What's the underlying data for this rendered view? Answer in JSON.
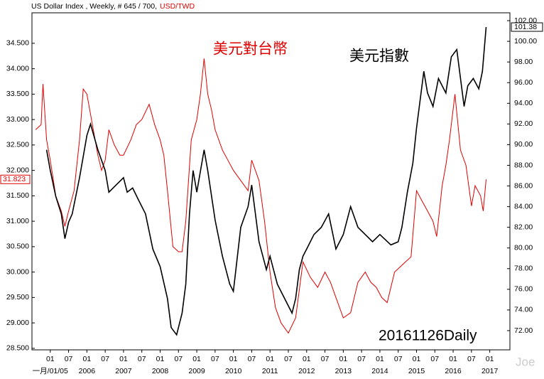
{
  "chart_data": {
    "type": "line",
    "title": "US Dollar Index , Weekly, # 645 / 700,",
    "title_pair": "USD/TWD",
    "annotations": [
      "美元對台幣",
      "美元指數",
      "20161126Daily",
      "Joe"
    ],
    "xlim": [
      2004.5,
      2017.55
    ],
    "xticks": [
      {
        "value": 2005,
        "label": "01"
      },
      {
        "value": 2005.5,
        "label": "07"
      },
      {
        "value": 2006,
        "label": "01"
      },
      {
        "value": 2006.5,
        "label": "07"
      },
      {
        "value": 2007,
        "label": "01"
      },
      {
        "value": 2007.5,
        "label": "07"
      },
      {
        "value": 2008,
        "label": "01"
      },
      {
        "value": 2008.5,
        "label": "07"
      },
      {
        "value": 2009,
        "label": "01"
      },
      {
        "value": 2009.5,
        "label": "07"
      },
      {
        "value": 2010,
        "label": "01"
      },
      {
        "value": 2010.5,
        "label": "07"
      },
      {
        "value": 2011,
        "label": "01"
      },
      {
        "value": 2011.5,
        "label": "07"
      },
      {
        "value": 2012,
        "label": "01"
      },
      {
        "value": 2012.5,
        "label": "07"
      },
      {
        "value": 2013,
        "label": "01"
      },
      {
        "value": 2013.5,
        "label": "07"
      },
      {
        "value": 2014,
        "label": "01"
      },
      {
        "value": 2014.5,
        "label": "07"
      },
      {
        "value": 2015,
        "label": "01"
      },
      {
        "value": 2015.5,
        "label": "07"
      },
      {
        "value": 2016,
        "label": "01"
      },
      {
        "value": 2016.5,
        "label": "07"
      },
      {
        "value": 2017,
        "label": "01"
      }
    ],
    "year_labels": [
      {
        "value": 2005,
        "label": "一月/01/05"
      },
      2006,
      2007,
      2008,
      2009,
      2010,
      2011,
      2012,
      2013,
      2014,
      2015,
      2016,
      2017
    ],
    "ylim": [
      28.47,
      35.1
    ],
    "yticks": [
      {
        "value": 28.5,
        "label": "28.500"
      },
      {
        "value": 29,
        "label": "29.000"
      },
      {
        "value": 29.5,
        "label": "29.500"
      },
      {
        "value": 30,
        "label": "30.000"
      },
      {
        "value": 30.5,
        "label": "30.500"
      },
      {
        "value": 31,
        "label": "31.000"
      },
      {
        "value": 31.5,
        "label": "31.500"
      },
      {
        "value": 32,
        "label": "32.000"
      },
      {
        "value": 32.5,
        "label": "32.500"
      },
      {
        "value": 33,
        "label": "33.000"
      },
      {
        "value": 33.5,
        "label": "33.500"
      },
      {
        "value": 34,
        "label": "34.000"
      },
      {
        "value": 34.5,
        "label": "34.500"
      }
    ],
    "y2lim": [
      70.14,
      102.76
    ],
    "y2ticks": [
      {
        "value": 72,
        "label": "72.00"
      },
      {
        "value": 74,
        "label": "74.00"
      },
      {
        "value": 76,
        "label": "76.00"
      },
      {
        "value": 78,
        "label": "78.00"
      },
      {
        "value": 80,
        "label": "80.00"
      },
      {
        "value": 82,
        "label": "82.00"
      },
      {
        "value": 84,
        "label": "84.00"
      },
      {
        "value": 86,
        "label": "86.00"
      },
      {
        "value": 88,
        "label": "88.00"
      },
      {
        "value": 90,
        "label": "90.00"
      },
      {
        "value": 92,
        "label": "92.00"
      },
      {
        "value": 94,
        "label": "94.00"
      },
      {
        "value": 96,
        "label": "96.00"
      },
      {
        "value": 98,
        "label": "98.00"
      },
      {
        "value": 100,
        "label": "100.00"
      },
      {
        "value": 102,
        "label": "102.00"
      }
    ],
    "series": [
      {
        "name": "USD/TWD",
        "color": "#e00000",
        "last_value": 31.823,
        "x": [
          2004.6,
          2004.75,
          2004.8,
          2004.9,
          2005.0,
          2005.15,
          2005.3,
          2005.4,
          2005.5,
          2005.65,
          2005.8,
          2005.9,
          2006.0,
          2006.15,
          2006.3,
          2006.4,
          2006.5,
          2006.6,
          2006.75,
          2006.9,
          2007.0,
          2007.2,
          2007.35,
          2007.5,
          2007.7,
          2007.85,
          2008.0,
          2008.1,
          2008.2,
          2008.35,
          2008.5,
          2008.6,
          2008.7,
          2008.85,
          2009.0,
          2009.1,
          2009.2,
          2009.3,
          2009.4,
          2009.5,
          2009.7,
          2009.85,
          2010.0,
          2010.2,
          2010.4,
          2010.5,
          2010.6,
          2010.7,
          2010.85,
          2011.0,
          2011.15,
          2011.3,
          2011.5,
          2011.7,
          2011.9,
          2012.1,
          2012.3,
          2012.5,
          2012.65,
          2012.8,
          2013.0,
          2013.2,
          2013.4,
          2013.6,
          2013.75,
          2013.9,
          2014.05,
          2014.2,
          2014.4,
          2014.55,
          2014.7,
          2014.85,
          2015.0,
          2015.15,
          2015.3,
          2015.45,
          2015.55,
          2015.7,
          2015.8,
          2015.9,
          2016.05,
          2016.2,
          2016.35,
          2016.5,
          2016.6,
          2016.75,
          2016.82,
          2016.9
        ],
        "values": [
          32.8,
          32.9,
          33.7,
          32.6,
          32.2,
          31.5,
          31.2,
          30.9,
          31.2,
          31.6,
          32.6,
          33.6,
          33.5,
          32.9,
          32.3,
          32.0,
          32.2,
          32.8,
          32.5,
          32.3,
          32.3,
          32.6,
          32.9,
          33.0,
          33.3,
          32.9,
          32.6,
          32.3,
          31.6,
          30.5,
          30.4,
          30.4,
          31.0,
          32.6,
          33.0,
          33.5,
          34.2,
          33.5,
          33.2,
          32.8,
          32.4,
          32.2,
          32.0,
          31.8,
          31.6,
          32.2,
          32.0,
          31.8,
          31.0,
          30.0,
          29.3,
          29.0,
          28.8,
          29.1,
          30.2,
          29.9,
          29.7,
          30.0,
          29.8,
          29.5,
          29.1,
          29.2,
          29.8,
          30.0,
          29.8,
          29.7,
          29.5,
          29.4,
          30.0,
          30.1,
          30.2,
          30.3,
          31.6,
          31.4,
          31.2,
          31.0,
          30.7,
          31.7,
          32.1,
          32.6,
          33.5,
          32.4,
          32.1,
          31.3,
          31.7,
          31.5,
          31.2,
          31.823
        ]
      },
      {
        "name": "美元指數",
        "color": "#000000",
        "axis": "y2",
        "last_value": 101.38,
        "x": [
          2004.9,
          2005.0,
          2005.15,
          2005.3,
          2005.4,
          2005.5,
          2005.6,
          2005.8,
          2006.0,
          2006.1,
          2006.3,
          2006.5,
          2006.6,
          2006.8,
          2007.0,
          2007.1,
          2007.25,
          2007.4,
          2007.6,
          2007.8,
          2008.0,
          2008.2,
          2008.3,
          2008.45,
          2008.6,
          2008.7,
          2008.8,
          2008.9,
          2009.0,
          2009.2,
          2009.3,
          2009.5,
          2009.7,
          2009.9,
          2010.0,
          2010.2,
          2010.4,
          2010.5,
          2010.7,
          2010.9,
          2011.0,
          2011.2,
          2011.4,
          2011.6,
          2011.7,
          2011.8,
          2011.9,
          2012.0,
          2012.2,
          2012.4,
          2012.6,
          2012.8,
          2013.0,
          2013.2,
          2013.4,
          2013.6,
          2013.8,
          2014.0,
          2014.3,
          2014.5,
          2014.6,
          2014.75,
          2014.9,
          2015.0,
          2015.2,
          2015.3,
          2015.45,
          2015.6,
          2015.8,
          2015.95,
          2016.1,
          2016.3,
          2016.4,
          2016.55,
          2016.7,
          2016.8,
          2016.9
        ],
        "values": [
          89.5,
          87.5,
          85.0,
          83.3,
          80.9,
          82.5,
          83.3,
          86.8,
          90.9,
          92.0,
          89.5,
          87.5,
          85.4,
          86.1,
          86.8,
          85.4,
          85.8,
          84.7,
          83.3,
          79.9,
          78.2,
          75.1,
          72.3,
          71.6,
          73.7,
          76.5,
          83.3,
          87.5,
          85.4,
          89.5,
          87.5,
          82.7,
          79.2,
          76.5,
          75.8,
          82.0,
          84.0,
          86.1,
          80.6,
          77.9,
          79.2,
          76.5,
          75.1,
          73.7,
          75.1,
          77.9,
          79.2,
          79.9,
          81.3,
          82.0,
          83.3,
          79.9,
          81.3,
          84.0,
          82.0,
          81.3,
          80.6,
          81.3,
          80.3,
          80.6,
          82.0,
          85.4,
          88.2,
          91.6,
          97.1,
          95.0,
          93.7,
          96.4,
          95.0,
          98.5,
          99.2,
          93.7,
          95.7,
          96.4,
          95.4,
          97.1,
          101.38
        ]
      }
    ]
  }
}
